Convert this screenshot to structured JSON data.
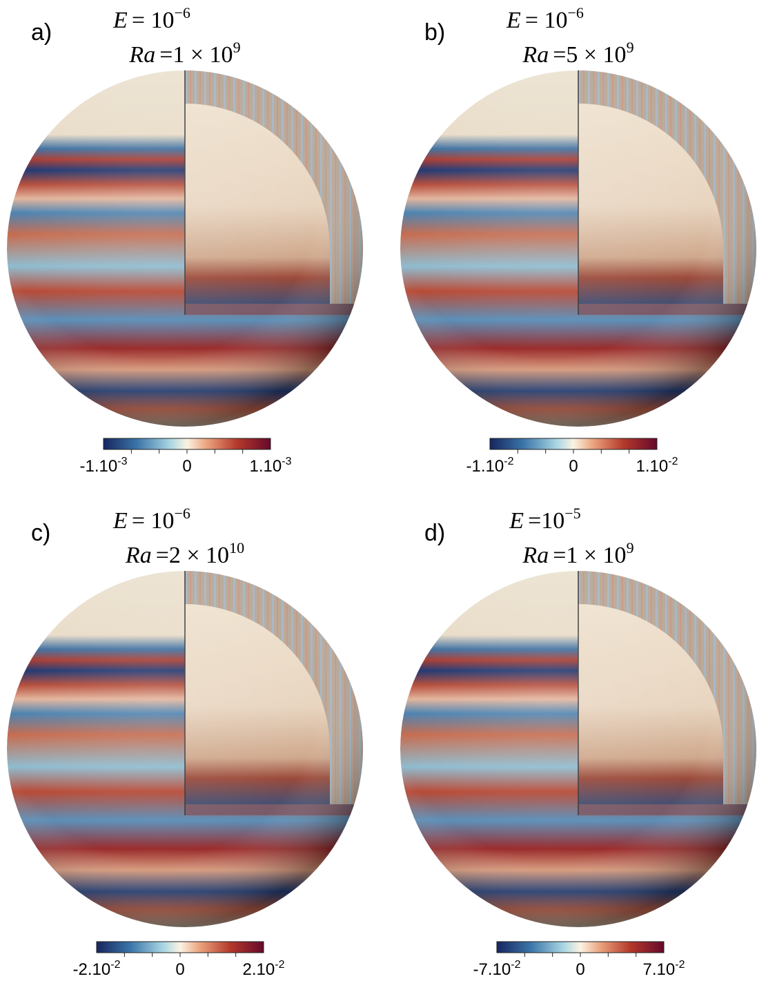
{
  "panels": [
    {
      "label": "a)",
      "line1": {
        "symbol": "E",
        "text": "= 10",
        "exponent": "−6"
      },
      "line2": {
        "symbol": "Ra",
        "text": "=1 × 10",
        "exponent": "9"
      },
      "colorbar": {
        "min": {
          "text": "-1.10",
          "exponent": "-3"
        },
        "zero": "0",
        "max": {
          "text": "1.10",
          "exponent": "-3"
        }
      }
    },
    {
      "label": "b)",
      "line1": {
        "symbol": "E",
        "text": "= 10",
        "exponent": "−6"
      },
      "line2": {
        "symbol": "Ra",
        "text": "=5 × 10",
        "exponent": "9"
      },
      "colorbar": {
        "min": {
          "text": "-1.10",
          "exponent": "-2"
        },
        "zero": "0",
        "max": {
          "text": "1.10",
          "exponent": "-2"
        }
      }
    },
    {
      "label": "c)",
      "line1": {
        "symbol": "E",
        "text": "= 10",
        "exponent": "−6"
      },
      "line2": {
        "symbol": "Ra",
        "text": "=2 × 10",
        "exponent": "10"
      },
      "colorbar": {
        "min": {
          "text": "-2.10",
          "exponent": "-2"
        },
        "zero": "0",
        "max": {
          "text": "2.10",
          "exponent": "-2"
        }
      }
    },
    {
      "label": "d)",
      "line1": {
        "symbol": "E",
        "text": "=10",
        "exponent": "−5"
      },
      "line2": {
        "symbol": "Ra",
        "text": "=1 × 10",
        "exponent": "9"
      },
      "colorbar": {
        "min": {
          "text": "-7.10",
          "exponent": "-2"
        },
        "zero": "0",
        "max": {
          "text": "7.10",
          "exponent": "-2"
        }
      }
    }
  ]
}
